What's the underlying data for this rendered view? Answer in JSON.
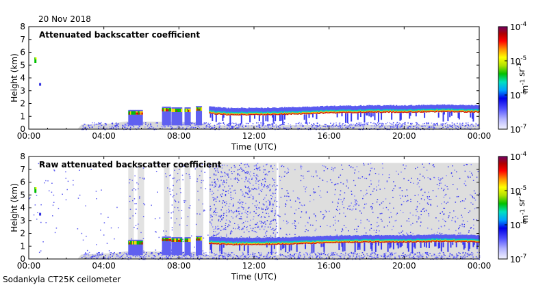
{
  "header": {
    "date": "20 Nov 2018"
  },
  "footer": {
    "instrument": "Sodankyla CT25K ceilometer"
  },
  "colors": {
    "cloud_gray": "#dcdcdc",
    "low_blue": "#4a4af0",
    "peak_red": "#e00000",
    "colorbar": [
      "#f2f2ff",
      "#b4b4ff",
      "#5050ff",
      "#0000e6",
      "#00a0ff",
      "#00e0c0",
      "#00c000",
      "#b0e000",
      "#ffff00",
      "#ff9000",
      "#ff0000",
      "#b00000",
      "#700060"
    ]
  },
  "chart_data": [
    {
      "type": "heatmap",
      "title": "Attenuated backscatter coefficient",
      "xlabel": "Time (UTC)",
      "ylabel": "Height (km)",
      "xlim": [
        0,
        24
      ],
      "ylim": [
        0,
        8
      ],
      "x_ticks": [
        "00:00",
        "04:00",
        "08:00",
        "12:00",
        "16:00",
        "20:00",
        "00:00"
      ],
      "y_ticks": [
        "0",
        "1",
        "2",
        "3",
        "4",
        "5",
        "6",
        "7",
        "8"
      ],
      "colorbar": {
        "scale": "log",
        "range": [
          1e-07,
          0.0001
        ],
        "labels": [
          "10-7",
          "10-6",
          "10-5",
          "10-4"
        ],
        "unit": "m-1 sr-1"
      },
      "cloud_base_km": [
        {
          "t": 5.4,
          "h": 1.3
        },
        {
          "t": 7.2,
          "h": 1.5
        },
        {
          "t": 7.8,
          "h": 1.5
        },
        {
          "t": 9.6,
          "h": 1.2
        },
        {
          "t": 10.5,
          "h": 1.1
        },
        {
          "t": 12,
          "h": 1.1
        },
        {
          "t": 14,
          "h": 1.15
        },
        {
          "t": 16,
          "h": 1.25
        },
        {
          "t": 18,
          "h": 1.3
        },
        {
          "t": 20,
          "h": 1.3
        },
        {
          "t": 22,
          "h": 1.35
        },
        {
          "t": 24,
          "h": 1.3
        }
      ]
    },
    {
      "type": "heatmap",
      "title": "Raw attenuated backscatter coefficient",
      "xlabel": "Time (UTC)",
      "ylabel": "Height (km)",
      "xlim": [
        0,
        24
      ],
      "ylim": [
        0,
        8
      ],
      "x_ticks": [
        "00:00",
        "04:00",
        "08:00",
        "12:00",
        "16:00",
        "20:00",
        "00:00"
      ],
      "y_ticks": [
        "0",
        "1",
        "2",
        "3",
        "4",
        "5",
        "6",
        "7",
        "8"
      ],
      "colorbar": {
        "scale": "log",
        "range": [
          1e-07,
          0.0001
        ],
        "labels": [
          "10-7",
          "10-6",
          "10-5",
          "10-4"
        ],
        "unit": "m-1 sr-1"
      },
      "cloud_base_km": [
        {
          "t": 5.4,
          "h": 1.3
        },
        {
          "t": 7.2,
          "h": 1.5
        },
        {
          "t": 7.8,
          "h": 1.5
        },
        {
          "t": 9.6,
          "h": 1.2
        },
        {
          "t": 10.5,
          "h": 1.1
        },
        {
          "t": 12,
          "h": 1.1
        },
        {
          "t": 14,
          "h": 1.15
        },
        {
          "t": 16,
          "h": 1.25
        },
        {
          "t": 18,
          "h": 1.3
        },
        {
          "t": 20,
          "h": 1.3
        },
        {
          "t": 22,
          "h": 1.35
        },
        {
          "t": 24,
          "h": 1.3
        }
      ]
    }
  ]
}
